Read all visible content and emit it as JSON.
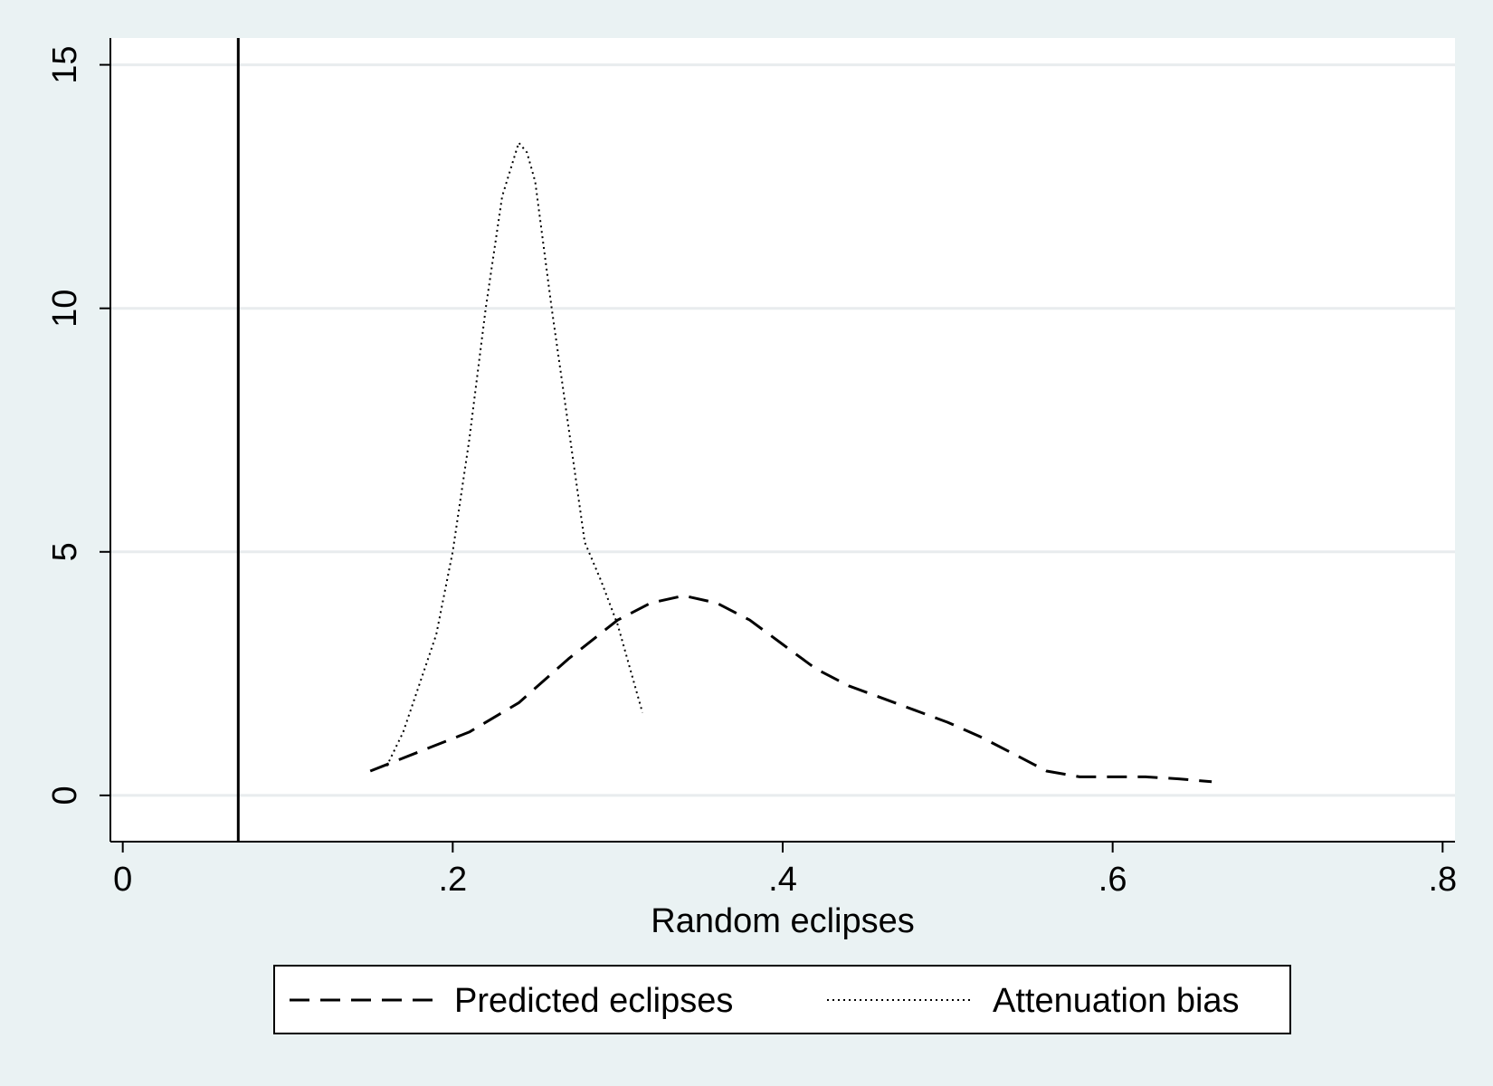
{
  "chart_data": {
    "type": "line",
    "title": "",
    "xlabel": "Random eclipses",
    "ylabel": "",
    "xlim": [
      -0.0075,
      0.8075
    ],
    "ylim": [
      -0.95,
      15.55
    ],
    "xticks": [
      {
        "value": 0,
        "label": "0"
      },
      {
        "value": 0.2,
        "label": ".2"
      },
      {
        "value": 0.4,
        "label": ".4"
      },
      {
        "value": 0.6,
        "label": ".6"
      },
      {
        "value": 0.8,
        "label": ".8"
      }
    ],
    "yticks": [
      {
        "value": 0,
        "label": "0"
      },
      {
        "value": 5,
        "label": "5"
      },
      {
        "value": 10,
        "label": "10"
      },
      {
        "value": 15,
        "label": "15"
      }
    ],
    "grid": "horizontal",
    "legend_position": "bottom",
    "reference_line_x": 0.07,
    "colors": {
      "background": "#eaf2f3",
      "plot": "#ffffff",
      "grid": "#e8ecee",
      "line": "#000000"
    },
    "series": [
      {
        "name": "Predicted eclipses",
        "style": "dashed",
        "x": [
          0.15,
          0.18,
          0.21,
          0.24,
          0.27,
          0.3,
          0.32,
          0.34,
          0.36,
          0.38,
          0.4,
          0.42,
          0.44,
          0.46,
          0.48,
          0.5,
          0.52,
          0.54,
          0.56,
          0.58,
          0.6,
          0.62,
          0.64,
          0.66
        ],
        "y": [
          0.5,
          0.9,
          1.3,
          1.9,
          2.8,
          3.6,
          3.95,
          4.1,
          3.95,
          3.6,
          3.1,
          2.6,
          2.25,
          2.0,
          1.75,
          1.5,
          1.2,
          0.85,
          0.5,
          0.38,
          0.38,
          0.38,
          0.34,
          0.28
        ]
      },
      {
        "name": "Attenuation bias",
        "style": "dotted",
        "x": [
          0.16,
          0.17,
          0.18,
          0.19,
          0.2,
          0.21,
          0.22,
          0.23,
          0.24,
          0.245,
          0.25,
          0.26,
          0.27,
          0.28,
          0.29,
          0.3,
          0.31,
          0.315
        ],
        "y": [
          0.6,
          1.3,
          2.3,
          3.3,
          5.0,
          7.3,
          10.0,
          12.3,
          13.4,
          13.2,
          12.6,
          10.0,
          7.6,
          5.2,
          4.4,
          3.5,
          2.3,
          1.7
        ]
      }
    ]
  }
}
